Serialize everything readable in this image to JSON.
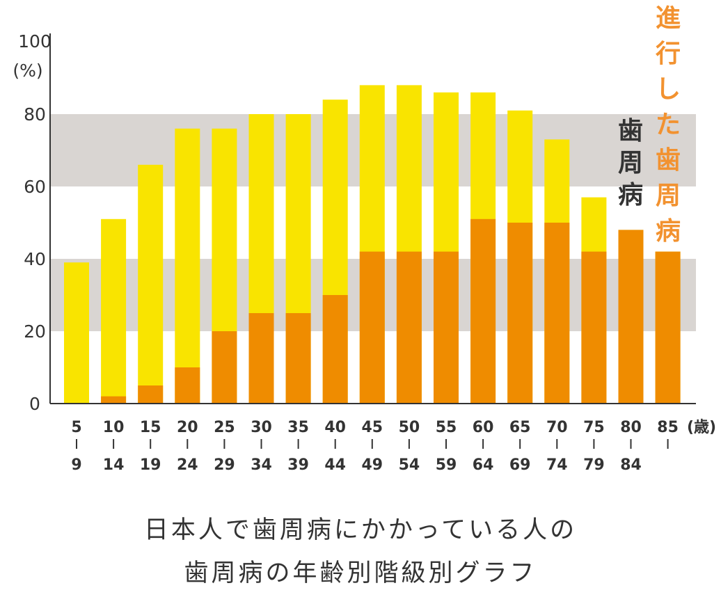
{
  "chart_data": {
    "type": "bar",
    "stacking": "overlay",
    "y_unit_label": "(%)",
    "x_unit_label": "(歳)",
    "ylim": [
      0,
      100
    ],
    "yticks": [
      0,
      20,
      40,
      60,
      80,
      100
    ],
    "bands": [
      [
        20,
        40
      ],
      [
        60,
        80
      ]
    ],
    "categories": [
      {
        "start": "5",
        "end": "9"
      },
      {
        "start": "10",
        "end": "14"
      },
      {
        "start": "15",
        "end": "19"
      },
      {
        "start": "20",
        "end": "24"
      },
      {
        "start": "25",
        "end": "29"
      },
      {
        "start": "30",
        "end": "34"
      },
      {
        "start": "35",
        "end": "39"
      },
      {
        "start": "40",
        "end": "44"
      },
      {
        "start": "45",
        "end": "49"
      },
      {
        "start": "50",
        "end": "54"
      },
      {
        "start": "55",
        "end": "59"
      },
      {
        "start": "60",
        "end": "64"
      },
      {
        "start": "65",
        "end": "69"
      },
      {
        "start": "70",
        "end": "74"
      },
      {
        "start": "75",
        "end": "79"
      },
      {
        "start": "80",
        "end": "84"
      },
      {
        "start": "85",
        "end": ""
      }
    ],
    "series": [
      {
        "name": "歯周病",
        "color": "#f9e400",
        "values": [
          39,
          51,
          66,
          76,
          76,
          80,
          80,
          84,
          88,
          88,
          86,
          86,
          81,
          73,
          57,
          48,
          42
        ]
      },
      {
        "name": "進行した歯周病",
        "color": "#ef8c00",
        "values": [
          0,
          2,
          5,
          10,
          20,
          25,
          25,
          30,
          42,
          42,
          42,
          51,
          50,
          50,
          42,
          48,
          42
        ]
      }
    ],
    "legend_colors": {
      "歯周病": "#333333",
      "進行した歯周病": "#f29230"
    },
    "band_color": "#d9d5d2",
    "axis_color": "#333333"
  },
  "caption": {
    "line1": "日本人で歯周病にかかっている人の",
    "line2": "歯周病の年齢別階級別グラフ"
  }
}
